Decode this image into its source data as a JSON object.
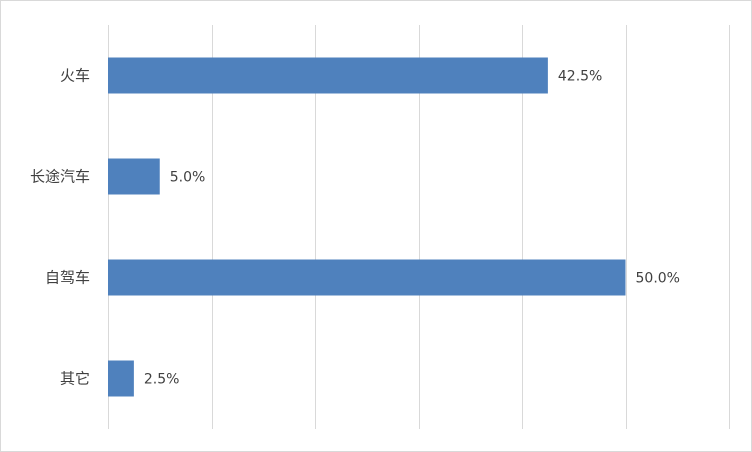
{
  "chart_data": {
    "type": "bar",
    "orientation": "horizontal",
    "categories": [
      "火车",
      "长途汽车",
      "自驾车",
      "其它"
    ],
    "values": [
      42.5,
      5.0,
      50.0,
      2.5
    ],
    "value_labels": [
      "42.5%",
      "5.0%",
      "50.0%",
      "2.5%"
    ],
    "unit": "%",
    "xlim": [
      0,
      60
    ],
    "grid": "vertical",
    "legend": "none",
    "bar_color": "#4f81bd",
    "gridline_color": "#d9d9d9"
  }
}
